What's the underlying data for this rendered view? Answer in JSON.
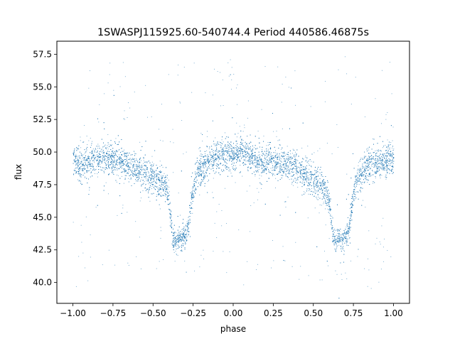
{
  "chart_data": {
    "type": "scatter",
    "title": "1SWASPJ115925.60-540744.4 Period 440586.46875s",
    "xlabel": "phase",
    "ylabel": "flux",
    "xlim": [
      -1.1,
      1.1
    ],
    "ylim": [
      38.4,
      58.5
    ],
    "xticks": [
      -1.0,
      -0.75,
      -0.5,
      -0.25,
      0.0,
      0.25,
      0.5,
      0.75,
      1.0
    ],
    "xtick_labels": [
      "−1.00",
      "−0.75",
      "−0.50",
      "−0.25",
      "0.00",
      "0.25",
      "0.50",
      "0.75",
      "1.00"
    ],
    "yticks": [
      40.0,
      42.5,
      45.0,
      47.5,
      50.0,
      52.5,
      55.0,
      57.5
    ],
    "ytick_labels": [
      "40.0",
      "42.5",
      "45.0",
      "47.5",
      "50.0",
      "52.5",
      "55.0",
      "57.5"
    ],
    "grid": false,
    "legend": "none",
    "series": [
      {
        "color": "#1f77b4",
        "marker": "dot",
        "description_of_shape": "phase-folded eclipsing binary light curve, mirrored over two cycles",
        "x": [
          -1.0,
          -0.95,
          -0.9,
          -0.85,
          -0.8,
          -0.75,
          -0.7,
          -0.65,
          -0.6,
          -0.55,
          -0.5,
          -0.45,
          -0.42,
          -0.4,
          -0.38,
          -0.36,
          -0.34,
          -0.32,
          -0.3,
          -0.28,
          -0.26,
          -0.24,
          -0.22,
          -0.2,
          -0.15,
          -0.1,
          -0.05,
          0.0,
          0.05,
          0.1,
          0.15,
          0.2,
          0.25,
          0.3,
          0.35,
          0.4,
          0.45,
          0.5,
          0.55,
          0.58,
          0.6,
          0.62,
          0.64,
          0.66,
          0.68,
          0.7,
          0.72,
          0.74,
          0.76,
          0.78,
          0.8,
          0.85,
          0.9,
          0.95,
          1.0
        ],
        "y": [
          49.5,
          48.9,
          49.3,
          49.4,
          49.6,
          49.5,
          49.3,
          49.0,
          48.8,
          48.4,
          48.0,
          47.6,
          47.2,
          46.2,
          43.5,
          43.2,
          43.3,
          43.4,
          43.5,
          44.5,
          46.5,
          47.8,
          48.5,
          48.8,
          49.3,
          49.7,
          49.8,
          49.9,
          50.0,
          49.7,
          49.3,
          49.2,
          49.3,
          49.2,
          49.0,
          48.7,
          48.3,
          47.9,
          47.5,
          47.0,
          46.0,
          43.6,
          43.2,
          43.3,
          43.4,
          43.5,
          44.0,
          45.8,
          47.6,
          48.3,
          48.6,
          48.9,
          49.2,
          49.3,
          49.5
        ]
      }
    ]
  }
}
